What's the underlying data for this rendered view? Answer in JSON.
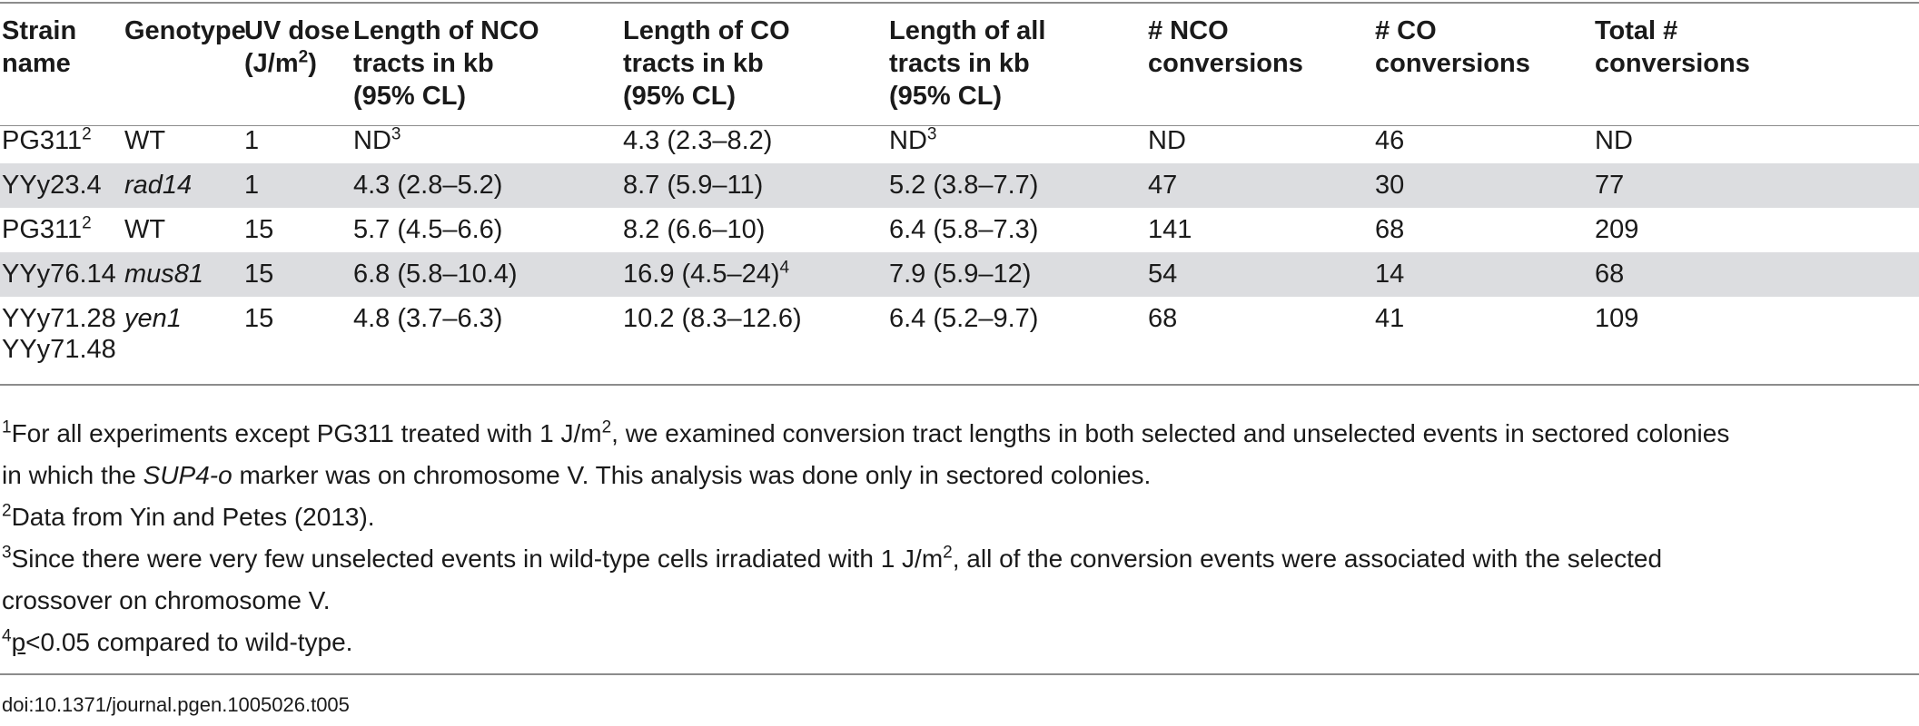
{
  "table": {
    "headers": [
      {
        "lines": [
          "Strain",
          "name"
        ]
      },
      {
        "lines": [
          "Genotype"
        ]
      },
      {
        "lines": [
          "UV dose",
          "(J/m",
          "2",
          ")"
        ]
      },
      {
        "lines": [
          "Length of NCO",
          "tracts in kb",
          "(95% CL)"
        ]
      },
      {
        "lines": [
          "Length of CO",
          "tracts in kb",
          "(95% CL)"
        ]
      },
      {
        "lines": [
          "Length of all",
          "tracts in kb",
          "(95% CL)"
        ]
      },
      {
        "lines": [
          "# NCO",
          "conversions"
        ]
      },
      {
        "lines": [
          "# CO",
          "conversions"
        ]
      },
      {
        "lines": [
          "Total #",
          "conversions"
        ]
      }
    ],
    "rows": [
      {
        "strain": "PG311",
        "strain_sup": "2",
        "genotype": "WT",
        "uv": "1",
        "nco_len": "ND",
        "nco_sup": "3",
        "co_len": "4.3 (2.3–8.2)",
        "co_sup": "",
        "all_len": "ND",
        "all_sup": "3",
        "nco_n": "ND",
        "co_n": "46",
        "total": "ND"
      },
      {
        "strain": "YYy23.4",
        "strain_sup": "",
        "genotype": "rad14",
        "uv": "1",
        "nco_len": "4.3 (2.8–5.2)",
        "nco_sup": "",
        "co_len": "8.7 (5.9–11)",
        "co_sup": "",
        "all_len": "5.2 (3.8–7.7)",
        "all_sup": "",
        "nco_n": "47",
        "co_n": "30",
        "total": "77"
      },
      {
        "strain": "PG311",
        "strain_sup": "2",
        "genotype": "WT",
        "uv": "15",
        "nco_len": "5.7 (4.5–6.6)",
        "nco_sup": "",
        "co_len": "8.2 (6.6–10)",
        "co_sup": "",
        "all_len": "6.4 (5.8–7.3)",
        "all_sup": "",
        "nco_n": "141",
        "co_n": "68",
        "total": "209"
      },
      {
        "strain": "YYy76.14",
        "strain_sup": "",
        "genotype": "mus81",
        "uv": "15",
        "nco_len": "6.8 (5.8–10.4)",
        "nco_sup": "",
        "co_len": "16.9 (4.5–24)",
        "co_sup": "4",
        "all_len": "7.9 (5.9–12)",
        "all_sup": "",
        "nco_n": "54",
        "co_n": "14",
        "total": "68"
      },
      {
        "strain": "YYy71.28",
        "strain2": "YYy71.48",
        "strain_sup": "",
        "genotype": "yen1",
        "uv": "15",
        "nco_len": "4.8 (3.7–6.3)",
        "nco_sup": "",
        "co_len": "10.2 (8.3–12.6)",
        "co_sup": "",
        "all_len": "6.4 (5.2–9.7)",
        "all_sup": "",
        "nco_n": "68",
        "co_n": "41",
        "total": "109"
      }
    ]
  },
  "footnotes": {
    "n1": {
      "mark": "1",
      "a": "For all experiments except PG311 treated with 1 J/m",
      "sup": "2",
      "b": ", we examined conversion tract lengths in both selected and unselected events in sectored colonies",
      "c": "in which the ",
      "italic": "SUP4-o",
      "d": " marker was on chromosome V. This analysis was done only in sectored colonies."
    },
    "n2": {
      "mark": "2",
      "text": "Data from Yin and Petes (2013)."
    },
    "n3": {
      "mark": "3",
      "a": "Since there were very few unselected events in wild-type cells irradiated with 1 J/m",
      "sup": "2",
      "b": ", all of the conversion events were associated with the selected",
      "c": "crossover on chromosome V."
    },
    "n4": {
      "mark": "4",
      "p": "p",
      "text": "<0.05 compared to wild-type."
    }
  },
  "doi": "doi:10.1371/journal.pgen.1005026.t005"
}
